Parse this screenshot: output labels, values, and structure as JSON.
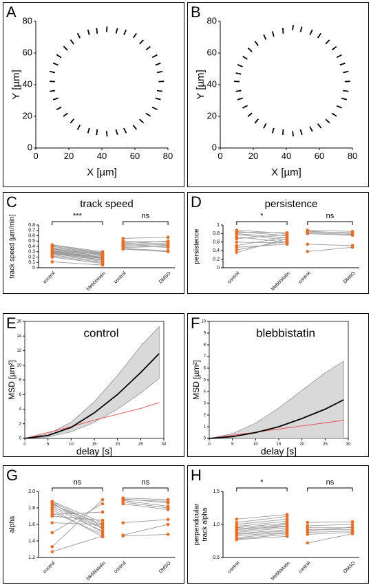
{
  "chart_data": [
    {
      "panel": "A",
      "type": "scatter",
      "xlabel": "X [µm]",
      "ylabel": "Y [µm]",
      "color": "#000000",
      "xlim": [
        0,
        80
      ],
      "ylim": [
        0,
        80
      ],
      "xticks": [
        0,
        20,
        40,
        60,
        80
      ],
      "yticks": [
        0,
        20,
        40,
        60,
        80
      ],
      "x": [
        76,
        75,
        74,
        72,
        68,
        64,
        60,
        54,
        49,
        43,
        37,
        32,
        26,
        22,
        18,
        14,
        12,
        10,
        10,
        10,
        12,
        14,
        18,
        22,
        26,
        32,
        37,
        43,
        49,
        54,
        60,
        64,
        68,
        72,
        74,
        75
      ],
      "y": [
        42,
        48,
        53,
        58,
        63,
        67,
        71,
        73,
        74,
        75,
        74,
        73,
        71,
        67,
        63,
        58,
        53,
        48,
        42,
        36,
        31,
        25,
        21,
        17,
        13,
        11,
        10,
        9,
        10,
        11,
        13,
        17,
        21,
        25,
        31,
        36
      ]
    },
    {
      "panel": "B",
      "type": "scatter",
      "xlabel": "X [µm]",
      "ylabel": "Y [µm]",
      "color": "#000000",
      "xlim": [
        0,
        80
      ],
      "ylim": [
        0,
        80
      ],
      "xticks": [
        0,
        20,
        40,
        60,
        80
      ],
      "yticks": [
        0,
        20,
        40,
        60,
        80
      ],
      "x": [
        77,
        76,
        74,
        72,
        69,
        65,
        60,
        55,
        49,
        44,
        38,
        32,
        27,
        22,
        18,
        15,
        12,
        11,
        10,
        11,
        12,
        15,
        18,
        22,
        27,
        32,
        38,
        44,
        49,
        55,
        60,
        65,
        69,
        72,
        75,
        76
      ],
      "y": [
        42,
        48,
        53,
        58,
        63,
        67,
        71,
        73,
        75,
        76,
        74,
        72,
        70,
        66,
        62,
        57,
        52,
        47,
        42,
        36,
        31,
        26,
        21,
        17,
        14,
        11,
        10,
        9,
        10,
        12,
        14,
        17,
        21,
        26,
        31,
        36
      ]
    },
    {
      "panel": "C",
      "type": "paired",
      "title": "track speed",
      "ylabel": "track speed [µm/min]",
      "color": "#f26b1d",
      "line_color": "#999999",
      "ylim": [
        0,
        0.8
      ],
      "yticks": [
        0,
        0.1,
        0.2,
        0.3,
        0.4,
        0.5,
        0.6,
        0.7,
        0.8
      ],
      "groups": [
        {
          "categories": [
            "control",
            "blebbistatin"
          ],
          "significance": "***",
          "before": [
            0.43,
            0.42,
            0.4,
            0.38,
            0.36,
            0.35,
            0.34,
            0.32,
            0.31,
            0.3,
            0.29,
            0.28,
            0.27,
            0.26,
            0.24,
            0.22,
            0.2,
            0.11
          ],
          "after": [
            0.3,
            0.28,
            0.27,
            0.26,
            0.25,
            0.24,
            0.22,
            0.22,
            0.2,
            0.19,
            0.18,
            0.17,
            0.15,
            0.14,
            0.12,
            0.1,
            0.08,
            0.05
          ]
        },
        {
          "categories": [
            "control",
            "DMSO"
          ],
          "significance": "ns",
          "before": [
            0.55,
            0.5,
            0.47,
            0.45,
            0.44,
            0.42,
            0.4,
            0.38,
            0.36,
            0.35
          ],
          "after": [
            0.57,
            0.48,
            0.45,
            0.5,
            0.42,
            0.38,
            0.44,
            0.4,
            0.32,
            0.3
          ]
        }
      ]
    },
    {
      "panel": "D",
      "type": "paired",
      "title": "persistence",
      "ylabel": "persistence",
      "color": "#f26b1d",
      "line_color": "#999999",
      "ylim": [
        0,
        1
      ],
      "yticks": [
        0,
        0.2,
        0.4,
        0.6,
        0.8,
        1
      ],
      "groups": [
        {
          "categories": [
            "control",
            "blebbistatin"
          ],
          "significance": "*",
          "before": [
            0.88,
            0.85,
            0.83,
            0.8,
            0.78,
            0.72,
            0.68,
            0.6,
            0.52,
            0.48,
            0.42,
            0.36
          ],
          "after": [
            0.8,
            0.75,
            0.82,
            0.7,
            0.65,
            0.6,
            0.78,
            0.58,
            0.72,
            0.55,
            0.62,
            0.68
          ]
        },
        {
          "categories": [
            "control",
            "DMSO"
          ],
          "significance": "ns",
          "before": [
            0.88,
            0.86,
            0.84,
            0.82,
            0.8,
            0.55,
            0.38
          ],
          "after": [
            0.85,
            0.8,
            0.82,
            0.78,
            0.76,
            0.52,
            0.48
          ]
        }
      ]
    },
    {
      "panel": "E",
      "type": "line",
      "title": "control",
      "xlabel": "delay [s]",
      "ylabel": "MSD [µm²]",
      "xlim": [
        0,
        30
      ],
      "ylim": [
        0,
        16
      ],
      "xticks": [
        0,
        5,
        10,
        15,
        20,
        25,
        30
      ],
      "yticks": [
        0,
        2,
        4,
        6,
        8,
        10,
        12,
        14,
        16
      ],
      "x": [
        0,
        5,
        10,
        15,
        20,
        25,
        29
      ],
      "band": {
        "color": "#d9d9d9",
        "lower": [
          0,
          0.2,
          0.9,
          2.2,
          4,
          6.2,
          8.2
        ],
        "upper": [
          0,
          0.6,
          2.2,
          5,
          8.6,
          12.6,
          15.3
        ]
      },
      "lines": [
        {
          "color": "#ef4a4a",
          "values": [
            0,
            0.8,
            1.6,
            2.5,
            3.3,
            4.1,
            4.9
          ]
        },
        {
          "color": "#000000",
          "values": [
            0,
            0.4,
            1.5,
            3.5,
            6,
            9,
            11.6
          ]
        }
      ]
    },
    {
      "panel": "F",
      "type": "line",
      "title": "blebbistatin",
      "xlabel": "delay [s]",
      "ylabel": "MSD [µm²]",
      "xlim": [
        0,
        30
      ],
      "ylim": [
        0,
        10
      ],
      "xticks": [
        0,
        5,
        10,
        15,
        20,
        25,
        30
      ],
      "yticks": [
        0,
        1,
        2,
        3,
        4,
        5,
        6,
        7,
        8,
        9,
        10
      ],
      "x": [
        0,
        5,
        10,
        15,
        20,
        25,
        29
      ],
      "band": {
        "color": "#d9d9d9",
        "lower": [
          0,
          0,
          0,
          0,
          0,
          0,
          0
        ],
        "upper": [
          0,
          0.4,
          1.3,
          2.6,
          4.1,
          5.6,
          6.6
        ]
      },
      "lines": [
        {
          "color": "#ef4a4a",
          "values": [
            0,
            0.27,
            0.53,
            0.8,
            1.07,
            1.33,
            1.55
          ]
        },
        {
          "color": "#000000",
          "values": [
            0,
            0.15,
            0.5,
            1.0,
            1.7,
            2.5,
            3.3
          ]
        }
      ]
    },
    {
      "panel": "G",
      "type": "paired",
      "ylabel": "alpha",
      "color": "#f26b1d",
      "line_color": "#999999",
      "ylim": [
        1.2,
        2
      ],
      "yticks": [
        1.2,
        1.4,
        1.6,
        1.8,
        {
          "value": 2,
          "label": "2.0"
        }
      ],
      "groups": [
        {
          "categories": [
            "control",
            "blebbistatin"
          ],
          "significance": "ns",
          "before": [
            1.88,
            1.87,
            1.86,
            1.85,
            1.84,
            1.82,
            1.8,
            1.78,
            1.75,
            1.72,
            1.7,
            1.62,
            1.5,
            1.33,
            1.27
          ],
          "after": [
            1.62,
            1.58,
            1.5,
            1.56,
            1.6,
            1.55,
            1.52,
            1.45,
            1.48,
            1.75,
            1.65,
            1.6,
            1.85,
            1.9,
            1.46
          ]
        },
        {
          "categories": [
            "control",
            "DMSO"
          ],
          "significance": "ns",
          "before": [
            1.92,
            1.91,
            1.9,
            1.89,
            1.87,
            1.85,
            1.62,
            1.47,
            1.46
          ],
          "after": [
            1.9,
            1.86,
            1.88,
            1.82,
            1.8,
            1.78,
            1.66,
            1.6,
            1.48
          ]
        }
      ]
    },
    {
      "panel": "H",
      "type": "paired",
      "ylabel": [
        "perpendicular",
        "track alpha"
      ],
      "color": "#f26b1d",
      "line_color": "#999999",
      "ylim": [
        0.5,
        1.5
      ],
      "yticks": [
        0.5,
        {
          "value": 1,
          "label": "1.0"
        },
        1.5
      ],
      "groups": [
        {
          "categories": [
            "control",
            "blebbistatin"
          ],
          "significance": "*",
          "before": [
            1.08,
            1.03,
            1.0,
            0.97,
            0.95,
            0.93,
            0.92,
            0.9,
            0.88,
            0.86,
            0.85,
            0.83,
            0.8,
            0.78,
            0.77
          ],
          "after": [
            1.15,
            1.12,
            1.08,
            1.05,
            1.02,
            1.0,
            0.98,
            0.97,
            0.95,
            0.92,
            0.9,
            0.88,
            0.87,
            0.85,
            0.82
          ]
        },
        {
          "categories": [
            "control",
            "DMSO"
          ],
          "significance": "ns",
          "before": [
            1.03,
            0.98,
            0.95,
            0.92,
            0.9,
            0.88,
            0.85,
            0.72
          ],
          "after": [
            1.04,
            1.0,
            0.95,
            0.92,
            0.96,
            0.9,
            0.88,
            0.86
          ]
        }
      ]
    }
  ]
}
